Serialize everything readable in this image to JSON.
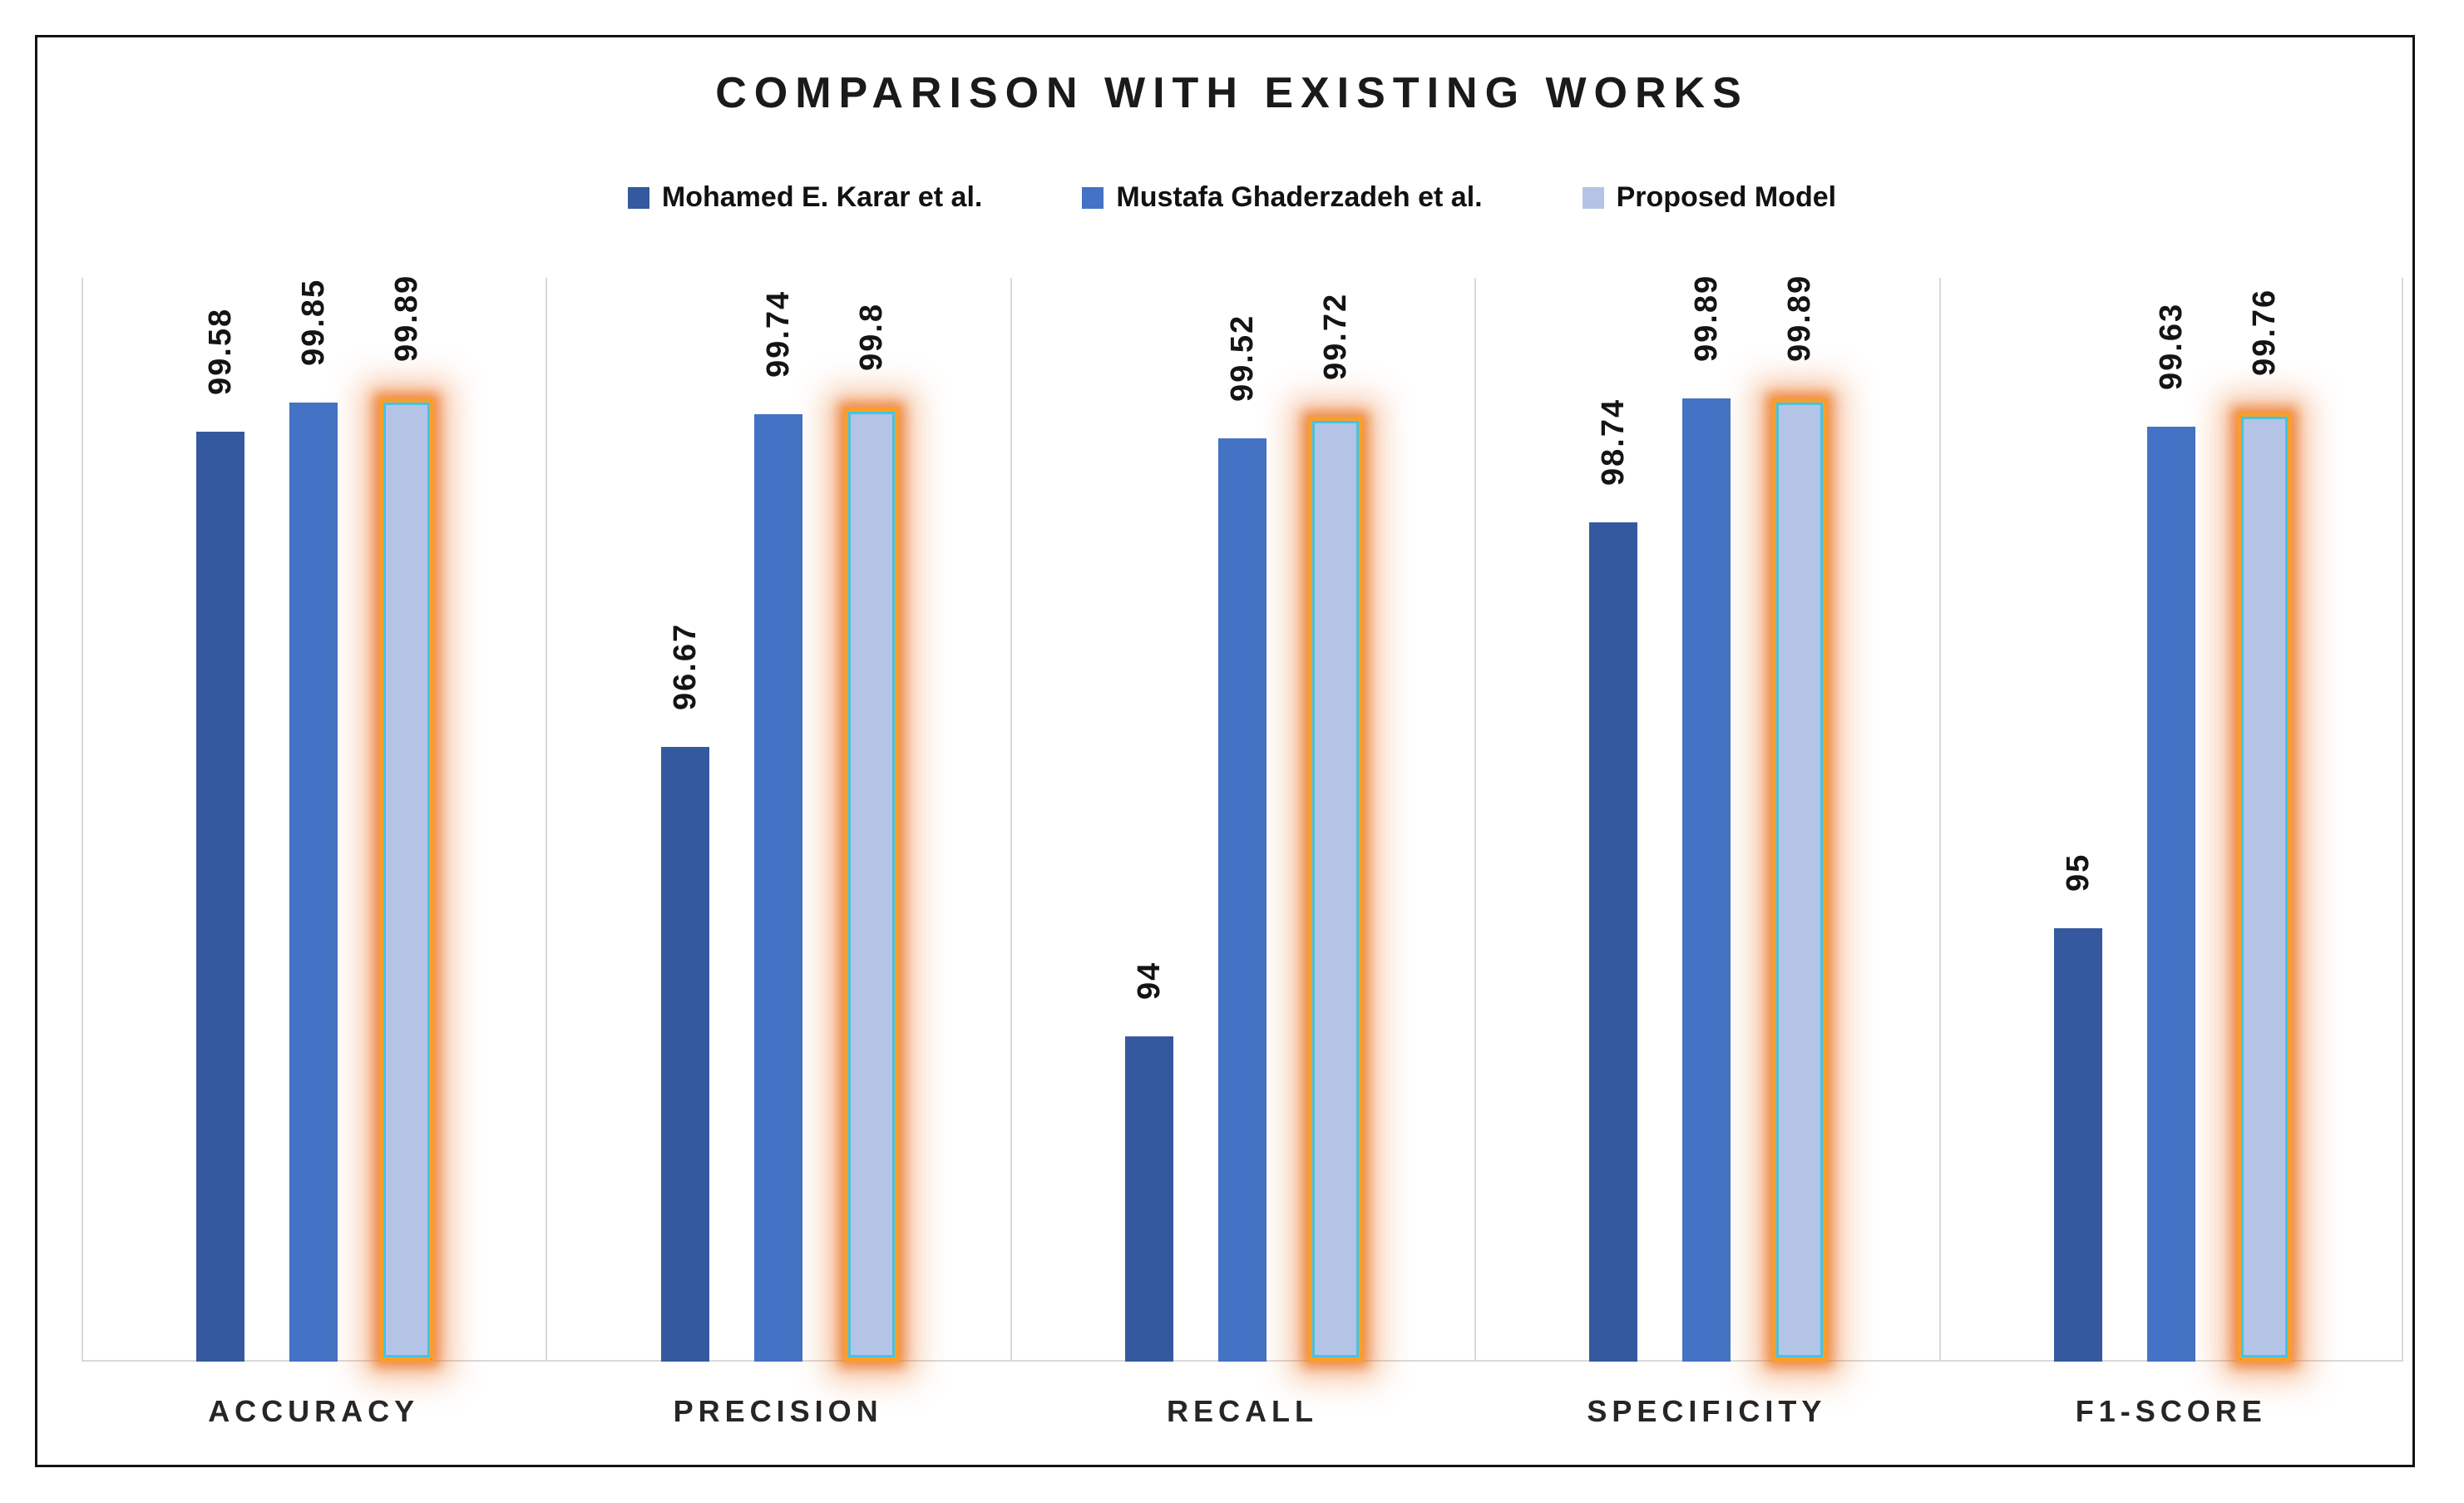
{
  "chart_data": {
    "type": "bar",
    "title": "COMPARISON WITH EXISTING WORKS",
    "categories": [
      "ACCURACY",
      "PRECISION",
      "RECALL",
      "SPECIFICITY",
      "F1-SCORE"
    ],
    "series": [
      {
        "name": "Mohamed E. Karar et al.",
        "color": "#35599F",
        "values": [
          99.58,
          96.67,
          94,
          98.74,
          95
        ]
      },
      {
        "name": "Mustafa Ghaderzadeh et al.",
        "color": "#4472C4",
        "values": [
          99.85,
          99.74,
          99.52,
          99.89,
          99.63
        ]
      },
      {
        "name": "Proposed Model",
        "color": "#B4C4E7",
        "values": [
          99.89,
          99.8,
          99.72,
          99.89,
          99.76
        ],
        "highlight": {
          "border_color": "#F89F2B",
          "glow_color": "#ED7D31",
          "inner_line_color": "#44C3E6"
        }
      }
    ],
    "ylim": [
      91,
      101
    ],
    "yaxis_visible": false,
    "grid": "vertical-panel-separators",
    "grid_color": "#D9D9D9",
    "frame_color": "#141414",
    "text_color": "#1A1A1A",
    "legend_position": "top",
    "data_labels": {
      "rotation": -90,
      "bold": true,
      "position": "above-bar"
    }
  }
}
